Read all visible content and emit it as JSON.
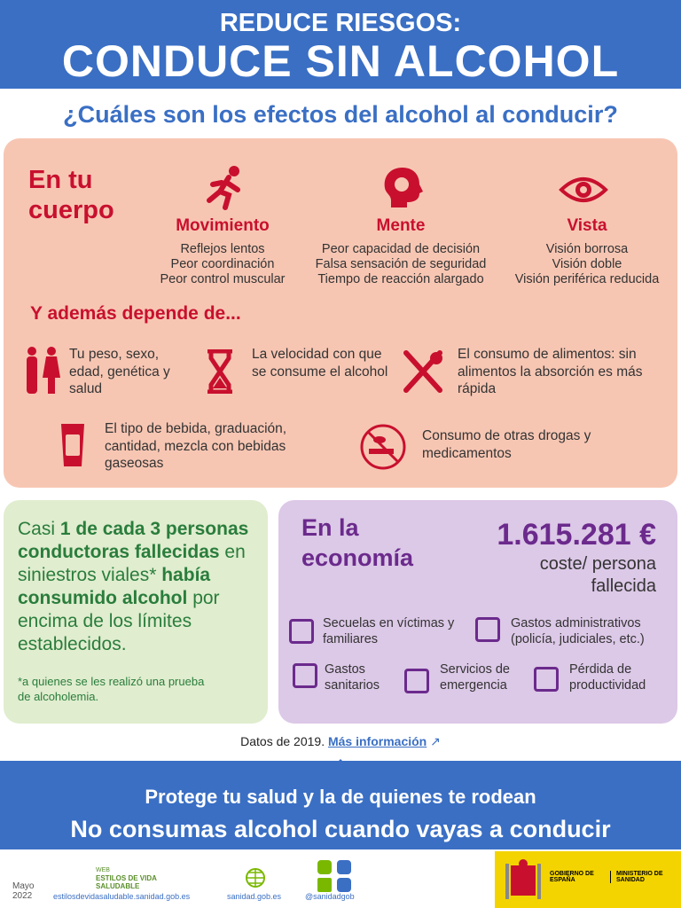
{
  "header": {
    "subtitle": "REDUCE RIESGOS:",
    "title": "CONDUCE SIN ALCOHOL"
  },
  "question": "¿Cuáles son los efectos del alcohol al conducir?",
  "body": {
    "heading": "En tu cuerpo",
    "effects": [
      {
        "title": "Movimiento",
        "lines": [
          "Reflejos lentos",
          "Peor coordinación",
          "Peor control muscular"
        ]
      },
      {
        "title": "Mente",
        "lines": [
          "Peor capacidad de decisión",
          "Falsa sensación de seguridad",
          "Tiempo de reacción alargado"
        ]
      },
      {
        "title": "Vista",
        "lines": [
          "Visión borrosa",
          "Visión doble",
          "Visión periférica reducida"
        ]
      }
    ]
  },
  "depends": {
    "heading": "Y además depende de...",
    "factors": [
      "Tu peso, sexo, edad, genética y salud",
      "La velocidad con que se consume el alcohol",
      "El consumo de alimentos: sin alimentos la absorción es más rápida",
      "El tipo de bebida, graduación, cantidad, mezcla con bebidas gaseosas",
      "Consumo de otras drogas y medicamentos"
    ]
  },
  "stat": {
    "parts": [
      "Casi ",
      "1 de cada 3 personas conductoras fallecidas",
      " en siniestros viales* ",
      "había consumido alcohol",
      " por encima de los límites establecidos."
    ],
    "footnote": "*a quienes se les realizó una prueba de alcoholemia."
  },
  "economy": {
    "heading": "En la economía",
    "amount": "1.615.281 €",
    "amount_label": "coste/ persona fallecida",
    "items": [
      "Secuelas en víctimas y familiares",
      "Gastos administrativos (policía, judiciales, etc.)",
      "Gastos sanitarios",
      "Servicios de emergencia",
      "Pérdida de productividad"
    ]
  },
  "source": {
    "text": "Datos de 2019.",
    "link": "Más información"
  },
  "banner": {
    "line1": "Protege tu salud y la de quienes te rodean",
    "line2": "No consumas alcohol cuando vayas a conducir"
  },
  "footer": {
    "date": "Mayo 2022",
    "web": "WEB",
    "brand": "ESTILOS DE VIDA SALUDABLE",
    "url1": "estilosdevidasaludable.sanidad.gob.es",
    "url2": "sanidad.gob.es",
    "social": "@sanidadgob",
    "gov": "GOBIERNO DE ESPAÑA",
    "ministry": "MINISTERIO DE SANIDAD"
  }
}
